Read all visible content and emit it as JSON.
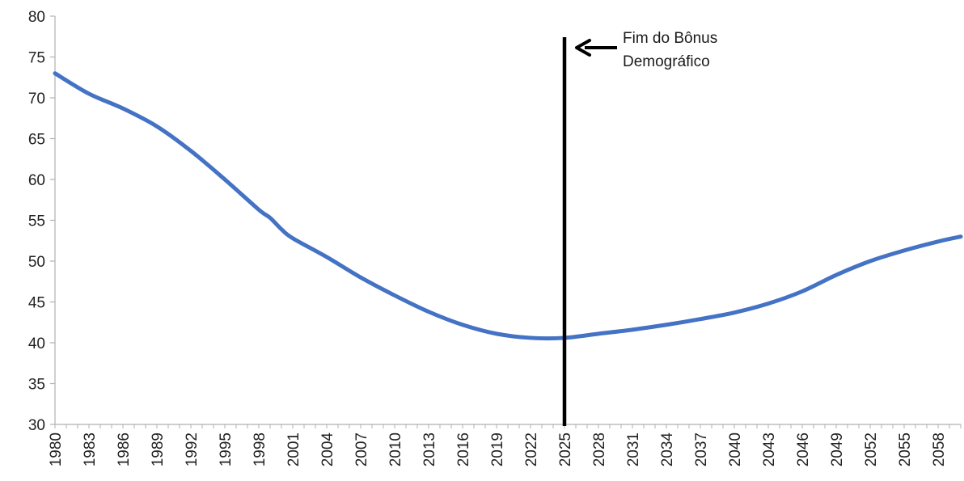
{
  "chart_data": {
    "type": "line",
    "title": "",
    "xlabel": "",
    "ylabel": "",
    "ylim": [
      30,
      80
    ],
    "yticks": [
      30,
      35,
      40,
      45,
      50,
      55,
      60,
      65,
      70,
      75,
      80
    ],
    "x_range": [
      1980,
      2060
    ],
    "x_tick_labels": [
      "1980",
      "1983",
      "1986",
      "1989",
      "1992",
      "1995",
      "1998",
      "2001",
      "2004",
      "2007",
      "2010",
      "2013",
      "2016",
      "2019",
      "2022",
      "2025",
      "2028",
      "2031",
      "2034",
      "2037",
      "2040",
      "2043",
      "2046",
      "2049",
      "2052",
      "2055",
      "2058"
    ],
    "grid": false,
    "series": [
      {
        "color": "#4472C4",
        "x": [
          1980,
          1983,
          1986,
          1989,
          1992,
          1995,
          1998,
          1999,
          2000,
          2001,
          2004,
          2007,
          2010,
          2013,
          2016,
          2019,
          2022,
          2025,
          2028,
          2031,
          2034,
          2037,
          2040,
          2043,
          2046,
          2049,
          2052,
          2055,
          2058,
          2060
        ],
        "values": [
          73.0,
          70.5,
          68.7,
          66.5,
          63.5,
          60.0,
          56.3,
          55.3,
          53.9,
          52.8,
          50.5,
          48.0,
          45.8,
          43.8,
          42.2,
          41.1,
          40.6,
          40.6,
          41.1,
          41.6,
          42.2,
          42.9,
          43.7,
          44.8,
          46.3,
          48.3,
          50.0,
          51.3,
          52.4,
          53.0
        ]
      }
    ],
    "annotation": {
      "x": 2025,
      "text_line1": "Fim do Bônus",
      "text_line2": "Demográfico",
      "line_color": "#000000",
      "arrow_color": "#000000"
    }
  }
}
